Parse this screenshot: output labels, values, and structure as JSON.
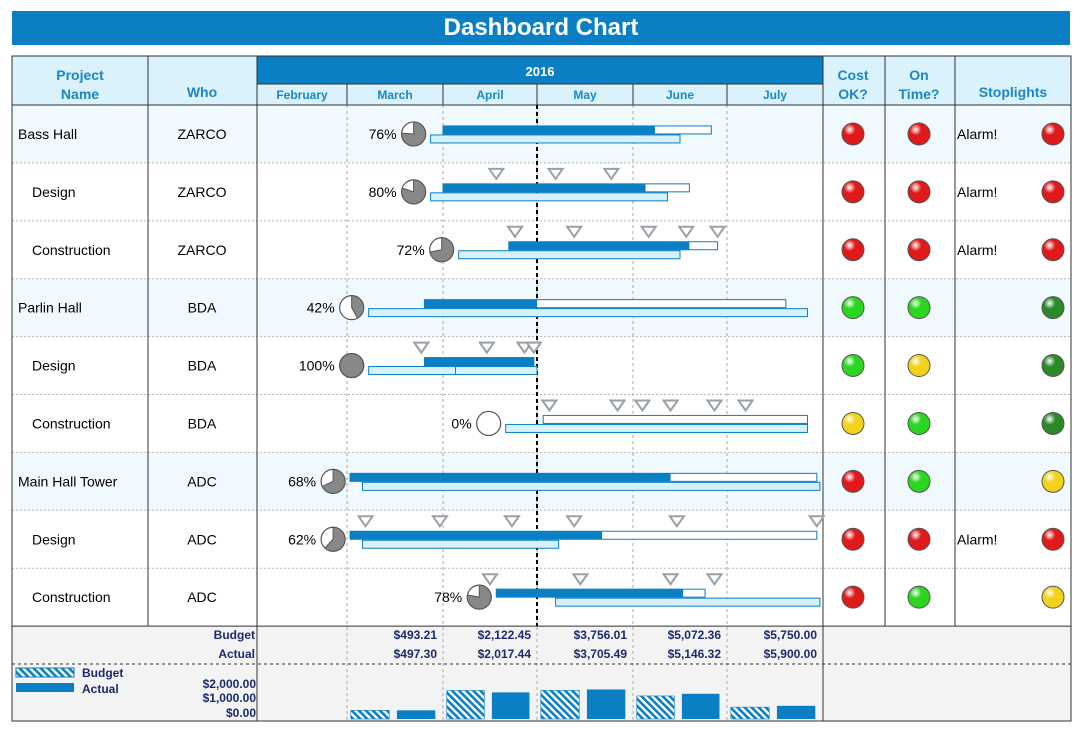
{
  "title": "Dashboard Chart",
  "headers": {
    "project_name": [
      "Project",
      "Name"
    ],
    "who": "Who",
    "year": "2016",
    "months": [
      "February",
      "March",
      "April",
      "May",
      "June",
      "July"
    ],
    "cost_ok": [
      "Cost",
      "OK?"
    ],
    "on_time": [
      "On",
      "Time?"
    ],
    "stoplights": "Stoplights"
  },
  "colors": {
    "accent": "#0a7fc4",
    "header_text": "#1b86c8",
    "header_bg": "#d9f2fb",
    "parent_row_bg": "#f0f9fd",
    "baseline_fill": "#d7f1fb",
    "red": "#e0191b",
    "green": "#2ad61f",
    "yellow": "#f2d21a",
    "dark_green": "#2a8a2a"
  },
  "timeline": {
    "start": "2016-02-01",
    "end": "2016-07-31",
    "today": "2016-05-01"
  },
  "rows": [
    {
      "name": "Bass Hall",
      "who": "ZARCO",
      "parent": true,
      "pct": 76,
      "plan": [
        "2016-04-01",
        "2016-06-26"
      ],
      "plan_done": [
        "2016-04-01",
        "2016-06-08"
      ],
      "actual": [
        "2016-03-28",
        "2016-06-16"
      ],
      "milestones": [],
      "cost": "red",
      "time": "red",
      "alarm": "Alarm!",
      "stoplight": "red"
    },
    {
      "name": "Design",
      "who": "ZARCO",
      "parent": false,
      "pct": 80,
      "plan": [
        "2016-04-01",
        "2016-06-19"
      ],
      "plan_done": [
        "2016-04-01",
        "2016-06-05"
      ],
      "actual": [
        "2016-03-28",
        "2016-06-12"
      ],
      "milestones": [
        "2016-04-18",
        "2016-05-07",
        "2016-05-25"
      ],
      "cost": "red",
      "time": "red",
      "alarm": "Alarm!",
      "stoplight": "red"
    },
    {
      "name": "Construction",
      "who": "ZARCO",
      "parent": false,
      "pct": 72,
      "plan": [
        "2016-04-22",
        "2016-06-28"
      ],
      "plan_done": [
        "2016-04-22",
        "2016-06-19"
      ],
      "actual": [
        "2016-04-06",
        "2016-06-16"
      ],
      "milestones": [
        "2016-04-24",
        "2016-05-13",
        "2016-06-06",
        "2016-06-18",
        "2016-06-28"
      ],
      "cost": "red",
      "time": "red",
      "alarm": "Alarm!",
      "stoplight": "red"
    },
    {
      "name": "Parlin Hall",
      "who": "BDA",
      "parent": true,
      "pct": 42,
      "plan": [
        "2016-03-26",
        "2016-07-20"
      ],
      "plan_done": [
        "2016-03-26",
        "2016-05-01"
      ],
      "actual": [
        "2016-03-08",
        "2016-07-27"
      ],
      "milestones": [],
      "cost": "green",
      "time": "green",
      "alarm": "",
      "stoplight": "dark_green"
    },
    {
      "name": "Design",
      "who": "BDA",
      "parent": false,
      "pct": 100,
      "plan": [
        "2016-03-26",
        "2016-04-30"
      ],
      "plan_done": [
        "2016-03-26",
        "2016-04-30"
      ],
      "actual": [
        "2016-03-08",
        "2016-05-01"
      ],
      "milestones": [
        "2016-03-25",
        "2016-04-15",
        "2016-04-27",
        "2016-04-30"
      ],
      "cost": "green",
      "time": "yellow",
      "alarm": "",
      "stoplight": "dark_green"
    },
    {
      "name": "Construction",
      "who": "BDA",
      "parent": false,
      "pct": 0,
      "plan": [
        "2016-05-03",
        "2016-07-27"
      ],
      "plan_done": [
        "2016-05-03",
        "2016-05-03"
      ],
      "actual": [
        "2016-04-21",
        "2016-07-27"
      ],
      "milestones": [
        "2016-05-05",
        "2016-05-27",
        "2016-06-04",
        "2016-06-13",
        "2016-06-27",
        "2016-07-07"
      ],
      "cost": "yellow",
      "time": "green",
      "alarm": "",
      "stoplight": "dark_green"
    },
    {
      "name": "Main Hall Tower",
      "who": "ADC",
      "parent": true,
      "pct": 68,
      "plan": [
        "2016-03-02",
        "2016-07-30"
      ],
      "plan_done": [
        "2016-03-02",
        "2016-06-13"
      ],
      "actual": [
        "2016-03-06",
        "2016-07-31"
      ],
      "milestones": [],
      "cost": "red",
      "time": "green",
      "alarm": "",
      "stoplight": "yellow"
    },
    {
      "name": "Design",
      "who": "ADC",
      "parent": false,
      "pct": 62,
      "plan": [
        "2016-03-02",
        "2016-07-30"
      ],
      "plan_done": [
        "2016-03-02",
        "2016-05-22"
      ],
      "actual": [
        "2016-03-06",
        "2016-05-08"
      ],
      "milestones": [
        "2016-03-07",
        "2016-03-31",
        "2016-04-23",
        "2016-05-13",
        "2016-06-15",
        "2016-07-30"
      ],
      "cost": "red",
      "time": "red",
      "alarm": "Alarm!",
      "stoplight": "red"
    },
    {
      "name": "Construction",
      "who": "ADC",
      "parent": false,
      "pct": 78,
      "plan": [
        "2016-04-18",
        "2016-06-24"
      ],
      "plan_done": [
        "2016-04-18",
        "2016-06-17"
      ],
      "actual": [
        "2016-05-07",
        "2016-07-31"
      ],
      "milestones": [
        "2016-04-16",
        "2016-05-15",
        "2016-06-13",
        "2016-06-27"
      ],
      "cost": "red",
      "time": "green",
      "alarm": "",
      "stoplight": "yellow"
    }
  ],
  "footer": {
    "budget_label": "Budget",
    "actual_label": "Actual",
    "budget_values": [
      "$493.21",
      "$2,122.45",
      "$3,756.01",
      "$5,072.36",
      "$5,750.00"
    ],
    "actual_values": [
      "$497.30",
      "$2,017.44",
      "$3,705.49",
      "$5,146.32",
      "$5,900.00"
    ]
  },
  "chart_data": {
    "type": "bar",
    "title": "",
    "categories": [
      "March",
      "April",
      "May",
      "June",
      "July"
    ],
    "series": [
      {
        "name": "Budget",
        "values": [
          493.21,
          1629.24,
          1633.56,
          1316.35,
          677.64
        ]
      },
      {
        "name": "Actual",
        "values": [
          497.3,
          1520.14,
          1688.05,
          1440.83,
          753.68
        ]
      }
    ],
    "ylim": [
      0,
      2000
    ],
    "ytick_labels": [
      "$2,000.00",
      "$1,000.00",
      "$0.00"
    ],
    "legend": [
      "Budget",
      "Actual"
    ],
    "legend_placement": "left"
  }
}
